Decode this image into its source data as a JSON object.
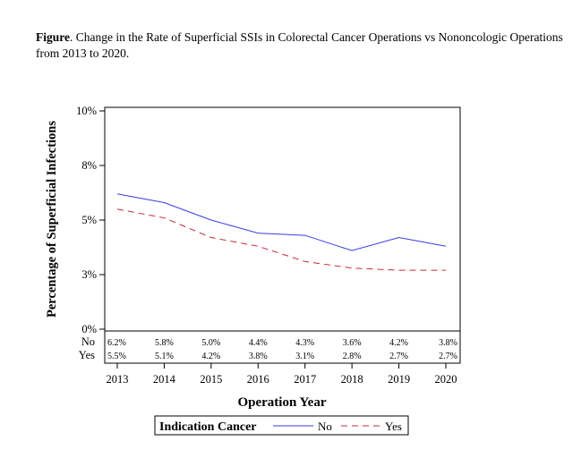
{
  "caption": {
    "label": "Figure",
    "text": ". Change in the Rate of Superficial SSIs in Colorectal Cancer Operations vs Nononcologic Operations from 2013 to 2020."
  },
  "chart_data": {
    "type": "line",
    "title": "",
    "xlabel": "Operation Year",
    "ylabel": "Percentage of Superficial Infections",
    "x": [
      2013,
      2014,
      2015,
      2016,
      2017,
      2018,
      2019,
      2020
    ],
    "x_tick_labels": [
      "2013",
      "2014",
      "2015",
      "2016",
      "2017",
      "2018",
      "2019",
      "2020"
    ],
    "ylim": [
      0,
      10
    ],
    "y_ticks": [
      0,
      2.5,
      5,
      7.5,
      10
    ],
    "y_tick_labels": [
      "0%",
      "3%",
      "5%",
      "8%",
      "10%"
    ],
    "grid": false,
    "legend": {
      "title": "Indication Cancer",
      "placement": "bottom"
    },
    "series": [
      {
        "name": "No",
        "values": [
          6.2,
          5.8,
          5.0,
          4.4,
          4.3,
          3.6,
          4.2,
          3.8
        ],
        "labels": [
          "6.2%",
          "5.8%",
          "5.0%",
          "4.4%",
          "4.3%",
          "3.6%",
          "4.2%",
          "3.8%"
        ],
        "color": "#3a3ae6",
        "dash": "solid"
      },
      {
        "name": "Yes",
        "values": [
          5.5,
          5.1,
          4.2,
          3.8,
          3.1,
          2.8,
          2.7,
          2.7
        ],
        "labels": [
          "5.5%",
          "5.1%",
          "4.2%",
          "3.8%",
          "3.1%",
          "2.8%",
          "2.7%",
          "2.7%"
        ],
        "color": "#c8283c",
        "dash": "dashed"
      }
    ]
  }
}
